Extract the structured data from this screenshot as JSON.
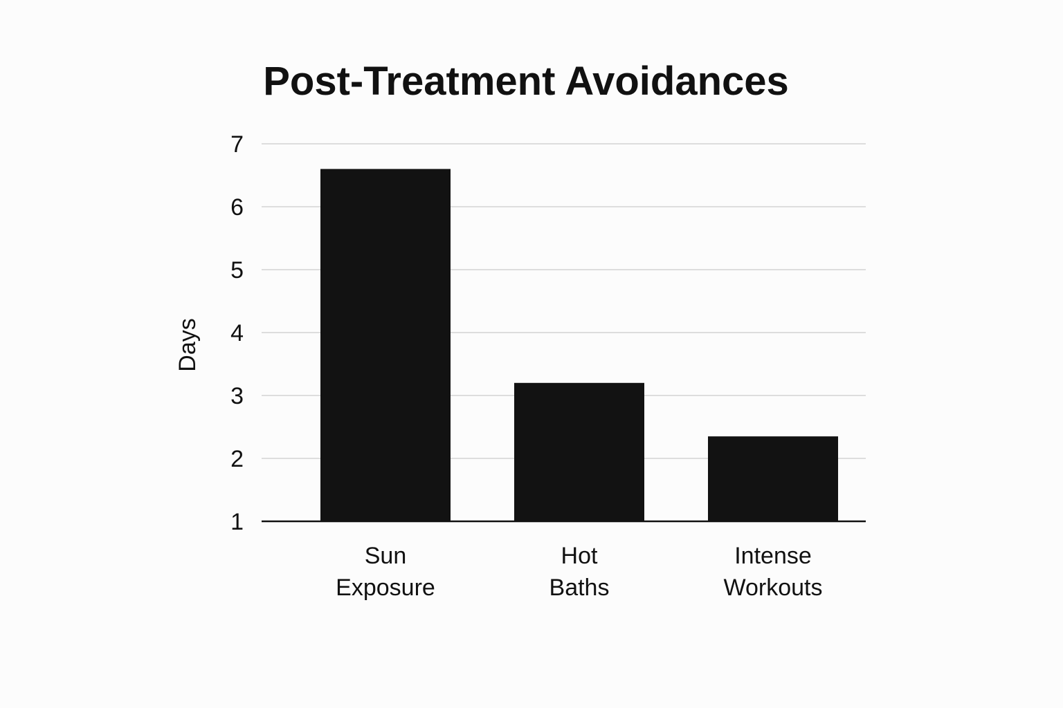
{
  "chart_data": {
    "type": "bar",
    "title": "Post-Treatment Avoidances",
    "xlabel": "",
    "ylabel": "Days",
    "categories": [
      "Sun Exposure",
      "Hot Baths",
      "Intense Workouts"
    ],
    "category_lines": [
      [
        "Sun",
        "Exposure"
      ],
      [
        "Hot",
        "Baths"
      ],
      [
        "Intense",
        "Workouts"
      ]
    ],
    "values": [
      6.6,
      3.2,
      2.35
    ],
    "ylim": [
      1,
      7
    ],
    "yticks": [
      1,
      2,
      3,
      4,
      5,
      6,
      7
    ],
    "grid": true,
    "legend": "none",
    "colors": {
      "bar": "#121212",
      "grid": "#dddddd",
      "background": "#fcfcfc"
    }
  }
}
